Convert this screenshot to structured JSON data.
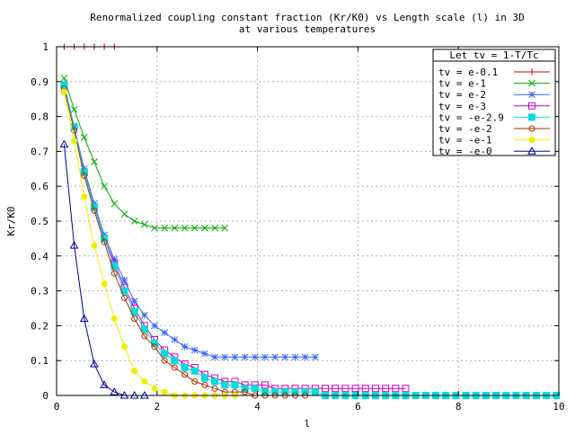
{
  "chart_data": {
    "type": "line",
    "title_lines": [
      "Renormalized coupling constant fraction (Kr/K0) vs Length scale (l) in 3D",
      "at various temperatures"
    ],
    "xlabel": "l",
    "ylabel": "Kr/K0",
    "xlim": [
      0,
      10
    ],
    "ylim": [
      0,
      1
    ],
    "x_ticks": [
      0,
      2,
      4,
      6,
      8,
      10
    ],
    "y_ticks": [
      0,
      0.1,
      0.2,
      0.3,
      0.4,
      0.5,
      0.6,
      0.7,
      0.8,
      0.9,
      1
    ],
    "grid": true,
    "legend_title": "Let tv = 1-T/Tc",
    "legend_position": "top-right",
    "series": [
      {
        "name": "tv = e-0.1",
        "color": "#cc0000",
        "marker": "plus",
        "points": [
          [
            0.15,
            1
          ],
          [
            0.35,
            1
          ],
          [
            0.55,
            1
          ],
          [
            0.75,
            1
          ],
          [
            0.95,
            1
          ],
          [
            1.15,
            1
          ]
        ]
      },
      {
        "name": "tv = e-1",
        "color": "#00aa00",
        "marker": "cross",
        "points": [
          [
            0.15,
            0.91
          ],
          [
            0.35,
            0.82
          ],
          [
            0.55,
            0.74
          ],
          [
            0.75,
            0.67
          ],
          [
            0.95,
            0.6
          ],
          [
            1.15,
            0.55
          ],
          [
            1.35,
            0.52
          ],
          [
            1.55,
            0.5
          ],
          [
            1.75,
            0.49
          ],
          [
            1.95,
            0.48
          ],
          [
            2.15,
            0.48
          ],
          [
            2.35,
            0.48
          ],
          [
            2.55,
            0.48
          ],
          [
            2.75,
            0.48
          ],
          [
            2.95,
            0.48
          ],
          [
            3.15,
            0.48
          ],
          [
            3.35,
            0.48
          ]
        ]
      },
      {
        "name": "tv = e-2",
        "color": "#3366ff",
        "marker": "star",
        "points": [
          [
            0.15,
            0.89
          ],
          [
            0.35,
            0.77
          ],
          [
            0.55,
            0.65
          ],
          [
            0.75,
            0.55
          ],
          [
            0.95,
            0.46
          ],
          [
            1.15,
            0.39
          ],
          [
            1.35,
            0.33
          ],
          [
            1.55,
            0.27
          ],
          [
            1.75,
            0.23
          ],
          [
            1.95,
            0.2
          ],
          [
            2.15,
            0.18
          ],
          [
            2.35,
            0.16
          ],
          [
            2.55,
            0.14
          ],
          [
            2.75,
            0.13
          ],
          [
            2.95,
            0.12
          ],
          [
            3.15,
            0.11
          ],
          [
            3.35,
            0.11
          ],
          [
            3.55,
            0.11
          ],
          [
            3.75,
            0.11
          ],
          [
            3.95,
            0.11
          ],
          [
            4.15,
            0.11
          ],
          [
            4.35,
            0.11
          ],
          [
            4.55,
            0.11
          ],
          [
            4.75,
            0.11
          ],
          [
            4.95,
            0.11
          ],
          [
            5.15,
            0.11
          ]
        ]
      },
      {
        "name": "tv = e-3",
        "color": "#cc00cc",
        "marker": "square-open",
        "points": [
          [
            0.15,
            0.89
          ],
          [
            0.35,
            0.77
          ],
          [
            0.55,
            0.64
          ],
          [
            0.75,
            0.54
          ],
          [
            0.95,
            0.45
          ],
          [
            1.15,
            0.38
          ],
          [
            1.35,
            0.31
          ],
          [
            1.55,
            0.25
          ],
          [
            1.75,
            0.2
          ],
          [
            1.95,
            0.16
          ],
          [
            2.15,
            0.13
          ],
          [
            2.35,
            0.11
          ],
          [
            2.55,
            0.09
          ],
          [
            2.75,
            0.08
          ],
          [
            2.95,
            0.06
          ],
          [
            3.15,
            0.05
          ],
          [
            3.35,
            0.04
          ],
          [
            3.55,
            0.04
          ],
          [
            3.75,
            0.03
          ],
          [
            3.95,
            0.03
          ],
          [
            4.15,
            0.03
          ],
          [
            4.35,
            0.02
          ],
          [
            4.55,
            0.02
          ],
          [
            4.75,
            0.02
          ],
          [
            4.95,
            0.02
          ],
          [
            5.15,
            0.02
          ],
          [
            5.35,
            0.02
          ],
          [
            5.55,
            0.02
          ],
          [
            5.75,
            0.02
          ],
          [
            5.95,
            0.02
          ],
          [
            6.15,
            0.02
          ],
          [
            6.35,
            0.02
          ],
          [
            6.55,
            0.02
          ],
          [
            6.75,
            0.02
          ],
          [
            6.95,
            0.02
          ]
        ]
      },
      {
        "name": "tv = -e-2.9",
        "color": "#00dddd",
        "marker": "square-filled",
        "points": [
          [
            0.15,
            0.89
          ],
          [
            0.35,
            0.77
          ],
          [
            0.55,
            0.64
          ],
          [
            0.75,
            0.54
          ],
          [
            0.95,
            0.45
          ],
          [
            1.15,
            0.37
          ],
          [
            1.35,
            0.3
          ],
          [
            1.55,
            0.24
          ],
          [
            1.75,
            0.19
          ],
          [
            1.95,
            0.15
          ],
          [
            2.15,
            0.12
          ],
          [
            2.35,
            0.1
          ],
          [
            2.55,
            0.08
          ],
          [
            2.75,
            0.07
          ],
          [
            2.95,
            0.05
          ],
          [
            3.15,
            0.04
          ],
          [
            3.35,
            0.03
          ],
          [
            3.55,
            0.03
          ],
          [
            3.75,
            0.02
          ],
          [
            3.95,
            0.02
          ],
          [
            4.15,
            0.01
          ],
          [
            4.35,
            0.01
          ],
          [
            4.55,
            0.01
          ],
          [
            4.75,
            0.01
          ],
          [
            4.95,
            0.01
          ],
          [
            5.15,
            0.01
          ],
          [
            5.35,
            0
          ],
          [
            5.55,
            0
          ],
          [
            5.75,
            0
          ],
          [
            5.95,
            0
          ],
          [
            6.15,
            0
          ],
          [
            6.35,
            0
          ],
          [
            6.55,
            0
          ],
          [
            6.75,
            0
          ],
          [
            6.95,
            0
          ],
          [
            7.15,
            0
          ],
          [
            7.35,
            0
          ],
          [
            7.55,
            0
          ],
          [
            7.75,
            0
          ],
          [
            7.95,
            0
          ],
          [
            8.15,
            0
          ],
          [
            8.35,
            0
          ],
          [
            8.55,
            0
          ],
          [
            8.75,
            0
          ],
          [
            8.95,
            0
          ],
          [
            9.15,
            0
          ],
          [
            9.35,
            0
          ],
          [
            9.55,
            0
          ],
          [
            9.75,
            0
          ],
          [
            9.95,
            0
          ]
        ]
      },
      {
        "name": "tv = -e-2",
        "color": "#aa3300",
        "marker": "circle-open",
        "points": [
          [
            0.15,
            0.88
          ],
          [
            0.35,
            0.76
          ],
          [
            0.55,
            0.63
          ],
          [
            0.75,
            0.53
          ],
          [
            0.95,
            0.44
          ],
          [
            1.15,
            0.35
          ],
          [
            1.35,
            0.28
          ],
          [
            1.55,
            0.22
          ],
          [
            1.75,
            0.17
          ],
          [
            1.95,
            0.14
          ],
          [
            2.15,
            0.1
          ],
          [
            2.35,
            0.08
          ],
          [
            2.55,
            0.06
          ],
          [
            2.75,
            0.04
          ],
          [
            2.95,
            0.03
          ],
          [
            3.15,
            0.02
          ],
          [
            3.35,
            0.01
          ],
          [
            3.55,
            0.01
          ],
          [
            3.75,
            0.01
          ],
          [
            3.95,
            0
          ],
          [
            4.15,
            0
          ],
          [
            4.35,
            0
          ],
          [
            4.55,
            0
          ],
          [
            4.75,
            0
          ],
          [
            4.95,
            0
          ]
        ]
      },
      {
        "name": "tv = -e-1",
        "color": "#eeee00",
        "marker": "circle-filled",
        "points": [
          [
            0.15,
            0.87
          ],
          [
            0.35,
            0.73
          ],
          [
            0.55,
            0.57
          ],
          [
            0.75,
            0.43
          ],
          [
            0.95,
            0.32
          ],
          [
            1.15,
            0.22
          ],
          [
            1.35,
            0.14
          ],
          [
            1.55,
            0.07
          ],
          [
            1.75,
            0.04
          ],
          [
            1.95,
            0.02
          ],
          [
            2.15,
            0.01
          ],
          [
            2.35,
            0
          ],
          [
            2.55,
            0
          ],
          [
            2.75,
            0
          ],
          [
            2.95,
            0
          ],
          [
            3.15,
            0
          ],
          [
            3.35,
            0
          ],
          [
            3.55,
            0
          ]
        ]
      },
      {
        "name": "tv = -e-0",
        "color": "#000099",
        "marker": "triangle-open",
        "points": [
          [
            0.15,
            0.72
          ],
          [
            0.35,
            0.43
          ],
          [
            0.55,
            0.22
          ],
          [
            0.75,
            0.09
          ],
          [
            0.95,
            0.03
          ],
          [
            1.15,
            0.01
          ],
          [
            1.35,
            0
          ],
          [
            1.55,
            0
          ],
          [
            1.75,
            0
          ]
        ]
      }
    ]
  }
}
